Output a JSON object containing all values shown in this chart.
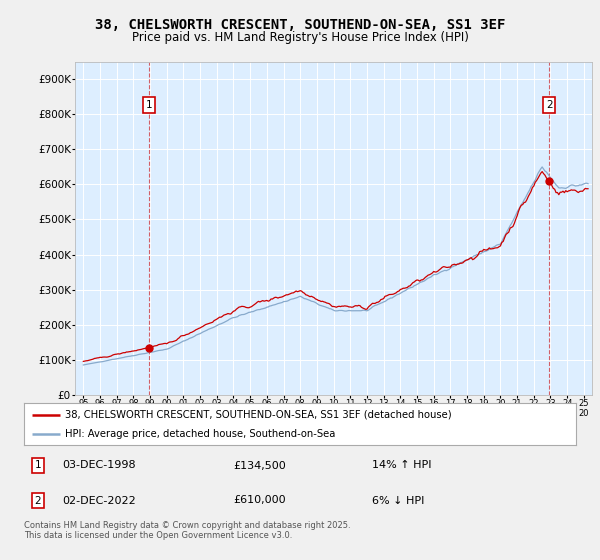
{
  "title": "38, CHELSWORTH CRESCENT, SOUTHEND-ON-SEA, SS1 3EF",
  "subtitle": "Price paid vs. HM Land Registry's House Price Index (HPI)",
  "title_fontsize": 10,
  "subtitle_fontsize": 8.5,
  "bg_color": "#ddeeff",
  "red_color": "#cc0000",
  "blue_color": "#88aacc",
  "sale1_year": 1998.92,
  "sale1_price": 134500,
  "sale2_year": 2022.92,
  "sale2_price": 610000,
  "legend_line1": "38, CHELSWORTH CRESCENT, SOUTHEND-ON-SEA, SS1 3EF (detached house)",
  "legend_line2": "HPI: Average price, detached house, Southend-on-Sea",
  "annotation1_date": "03-DEC-1998",
  "annotation1_price": "£134,500",
  "annotation1_hpi": "14% ↑ HPI",
  "annotation2_date": "02-DEC-2022",
  "annotation2_price": "£610,000",
  "annotation2_hpi": "6% ↓ HPI",
  "footer": "Contains HM Land Registry data © Crown copyright and database right 2025.\nThis data is licensed under the Open Government Licence v3.0.",
  "ylim_max": 950000,
  "xlim_min": 1994.5,
  "xlim_max": 2025.5,
  "yticks": [
    0,
    100000,
    200000,
    300000,
    400000,
    500000,
    600000,
    700000,
    800000,
    900000
  ],
  "ytick_labels": [
    "£0",
    "£100K",
    "£200K",
    "£300K",
    "£400K",
    "£500K",
    "£600K",
    "£700K",
    "£800K",
    "£900K"
  ]
}
